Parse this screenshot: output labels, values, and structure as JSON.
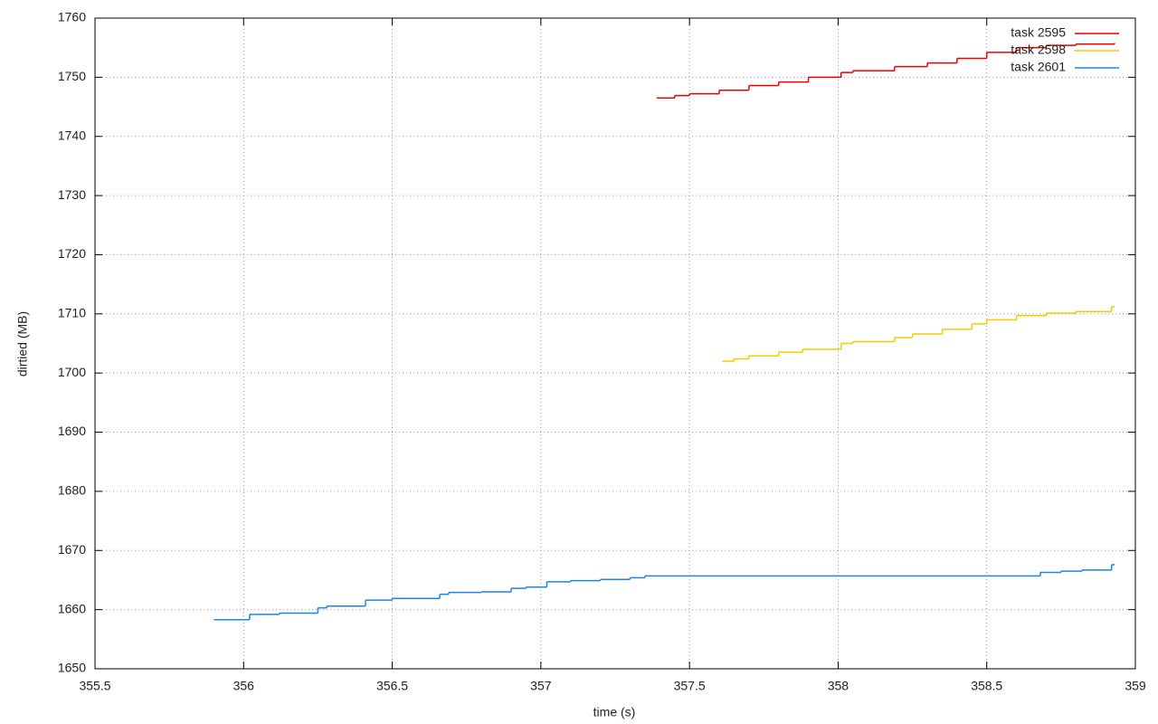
{
  "chart_data": {
    "type": "step-line",
    "xlabel": "time (s)",
    "ylabel": "dirtied (MB)",
    "xlim": [
      355.5,
      359
    ],
    "xticks": [
      355.5,
      356,
      356.5,
      357,
      357.5,
      358,
      358.5,
      359
    ],
    "ylim": [
      1650,
      1760
    ],
    "yticks": [
      1650,
      1660,
      1670,
      1680,
      1690,
      1700,
      1710,
      1720,
      1730,
      1740,
      1750,
      1760
    ],
    "grid": true,
    "legend": "top-right",
    "series": [
      {
        "name": "task 2595",
        "color": "#ee0000",
        "x": [
          357.39,
          357.45,
          357.5,
          357.6,
          357.7,
          357.8,
          357.9,
          358.01,
          358.05,
          358.19,
          358.3,
          358.4,
          358.5,
          358.6,
          358.7,
          358.8,
          358.93
        ],
        "values": [
          1746.5,
          1746.9,
          1747.2,
          1747.8,
          1748.6,
          1749.2,
          1750.0,
          1750.8,
          1751.1,
          1751.8,
          1752.4,
          1753.2,
          1754.2,
          1755.0,
          1755.4,
          1755.6,
          1755.8
        ]
      },
      {
        "name": "task 2598",
        "color": "#f5cc00",
        "x": [
          357.61,
          357.65,
          357.7,
          357.8,
          357.88,
          358.01,
          358.05,
          358.19,
          358.25,
          358.35,
          358.45,
          358.5,
          358.6,
          358.7,
          358.8,
          358.92,
          358.93
        ],
        "values": [
          1702.0,
          1702.4,
          1702.9,
          1703.5,
          1704.0,
          1705.0,
          1705.3,
          1706.0,
          1706.6,
          1707.4,
          1708.3,
          1709.0,
          1709.7,
          1710.1,
          1710.4,
          1711.2,
          1711.2
        ]
      },
      {
        "name": "task 2601",
        "color": "#1a85e8",
        "x": [
          355.9,
          356.02,
          356.12,
          356.25,
          356.28,
          356.41,
          356.5,
          356.66,
          356.69,
          356.8,
          356.9,
          356.95,
          357.02,
          357.1,
          357.2,
          357.3,
          357.35,
          358.68,
          358.75,
          358.82,
          358.92,
          358.93
        ],
        "values": [
          1658.3,
          1659.2,
          1659.4,
          1660.3,
          1660.6,
          1661.6,
          1661.9,
          1662.6,
          1662.9,
          1663.0,
          1663.6,
          1663.8,
          1664.7,
          1664.9,
          1665.1,
          1665.4,
          1665.7,
          1666.3,
          1666.5,
          1666.7,
          1667.6,
          1667.6
        ]
      }
    ]
  }
}
